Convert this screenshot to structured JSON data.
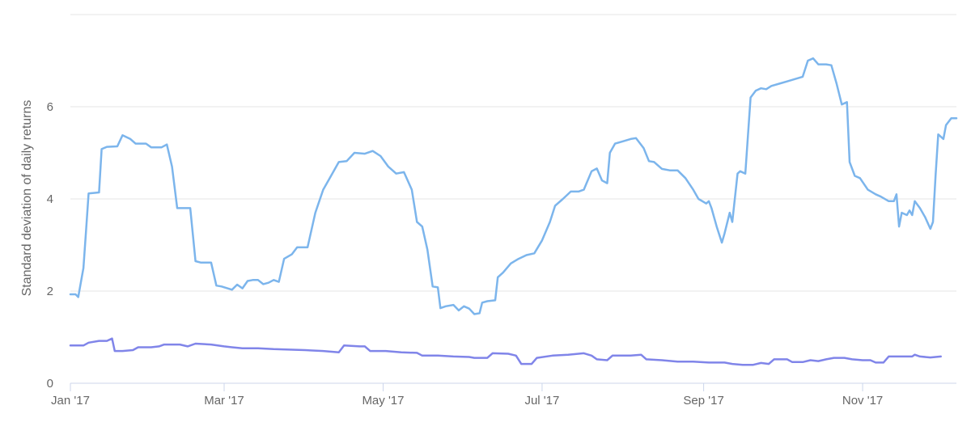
{
  "chart_data": {
    "type": "line",
    "title": "",
    "xlabel": "",
    "ylabel": "Standard deviation of daily returns",
    "x_range": [
      "2017-01-01",
      "2017-12-07"
    ],
    "ylim": [
      0,
      8
    ],
    "y_ticks": [
      0,
      2,
      4,
      6
    ],
    "x_ticks": [
      {
        "date": "2017-01-01",
        "label": "Jan '17"
      },
      {
        "date": "2017-03-01",
        "label": "Mar '17"
      },
      {
        "date": "2017-05-01",
        "label": "May '17"
      },
      {
        "date": "2017-07-01",
        "label": "Jul '17"
      },
      {
        "date": "2017-09-01",
        "label": "Sep '17"
      },
      {
        "date": "2017-11-01",
        "label": "Nov '17"
      }
    ],
    "grid": {
      "horizontal": true,
      "vertical": false
    },
    "series": [
      {
        "color": "#7cb5ec",
        "points": [
          [
            "2017-01-01",
            1.93
          ],
          [
            "2017-01-03",
            1.93
          ],
          [
            "2017-01-04",
            1.87
          ],
          [
            "2017-01-06",
            2.5
          ],
          [
            "2017-01-07",
            3.3
          ],
          [
            "2017-01-08",
            4.12
          ],
          [
            "2017-01-12",
            4.14
          ],
          [
            "2017-01-13",
            5.08
          ],
          [
            "2017-01-15",
            5.13
          ],
          [
            "2017-01-19",
            5.14
          ],
          [
            "2017-01-21",
            5.38
          ],
          [
            "2017-01-24",
            5.3
          ],
          [
            "2017-01-26",
            5.2
          ],
          [
            "2017-01-30",
            5.2
          ],
          [
            "2017-02-01",
            5.12
          ],
          [
            "2017-02-05",
            5.12
          ],
          [
            "2017-02-07",
            5.18
          ],
          [
            "2017-02-09",
            4.7
          ],
          [
            "2017-02-11",
            3.8
          ],
          [
            "2017-02-16",
            3.8
          ],
          [
            "2017-02-18",
            2.65
          ],
          [
            "2017-02-20",
            2.62
          ],
          [
            "2017-02-24",
            2.62
          ],
          [
            "2017-02-26",
            2.12
          ],
          [
            "2017-02-28",
            2.1
          ],
          [
            "2017-03-04",
            2.03
          ],
          [
            "2017-03-06",
            2.14
          ],
          [
            "2017-03-08",
            2.06
          ],
          [
            "2017-03-10",
            2.22
          ],
          [
            "2017-03-12",
            2.24
          ],
          [
            "2017-03-14",
            2.24
          ],
          [
            "2017-03-16",
            2.15
          ],
          [
            "2017-03-18",
            2.18
          ],
          [
            "2017-03-20",
            2.24
          ],
          [
            "2017-03-22",
            2.2
          ],
          [
            "2017-03-24",
            2.7
          ],
          [
            "2017-03-27",
            2.8
          ],
          [
            "2017-03-29",
            2.95
          ],
          [
            "2017-04-02",
            2.95
          ],
          [
            "2017-04-05",
            3.7
          ],
          [
            "2017-04-08",
            4.2
          ],
          [
            "2017-04-11",
            4.5
          ],
          [
            "2017-04-14",
            4.8
          ],
          [
            "2017-04-17",
            4.82
          ],
          [
            "2017-04-20",
            5.0
          ],
          [
            "2017-04-24",
            4.98
          ],
          [
            "2017-04-27",
            5.04
          ],
          [
            "2017-04-30",
            4.93
          ],
          [
            "2017-05-03",
            4.7
          ],
          [
            "2017-05-06",
            4.55
          ],
          [
            "2017-05-09",
            4.58
          ],
          [
            "2017-05-12",
            4.2
          ],
          [
            "2017-05-14",
            3.5
          ],
          [
            "2017-05-16",
            3.4
          ],
          [
            "2017-05-18",
            2.9
          ],
          [
            "2017-05-20",
            2.1
          ],
          [
            "2017-05-22",
            2.08
          ],
          [
            "2017-05-23",
            1.63
          ],
          [
            "2017-05-25",
            1.67
          ],
          [
            "2017-05-28",
            1.7
          ],
          [
            "2017-05-30",
            1.58
          ],
          [
            "2017-06-01",
            1.67
          ],
          [
            "2017-06-03",
            1.62
          ],
          [
            "2017-06-05",
            1.5
          ],
          [
            "2017-06-07",
            1.52
          ],
          [
            "2017-06-08",
            1.75
          ],
          [
            "2017-06-10",
            1.78
          ],
          [
            "2017-06-13",
            1.8
          ],
          [
            "2017-06-14",
            2.3
          ],
          [
            "2017-06-16",
            2.4
          ],
          [
            "2017-06-19",
            2.6
          ],
          [
            "2017-06-22",
            2.7
          ],
          [
            "2017-06-25",
            2.78
          ],
          [
            "2017-06-28",
            2.82
          ],
          [
            "2017-07-01",
            3.1
          ],
          [
            "2017-07-04",
            3.5
          ],
          [
            "2017-07-06",
            3.85
          ],
          [
            "2017-07-09",
            4.0
          ],
          [
            "2017-07-12",
            4.16
          ],
          [
            "2017-07-15",
            4.16
          ],
          [
            "2017-07-17",
            4.2
          ],
          [
            "2017-07-20",
            4.6
          ],
          [
            "2017-07-22",
            4.66
          ],
          [
            "2017-07-24",
            4.4
          ],
          [
            "2017-07-26",
            4.34
          ],
          [
            "2017-07-27",
            5.0
          ],
          [
            "2017-07-29",
            5.2
          ],
          [
            "2017-08-01",
            5.25
          ],
          [
            "2017-08-04",
            5.3
          ],
          [
            "2017-08-06",
            5.32
          ],
          [
            "2017-08-09",
            5.1
          ],
          [
            "2017-08-11",
            4.82
          ],
          [
            "2017-08-13",
            4.8
          ],
          [
            "2017-08-16",
            4.65
          ],
          [
            "2017-08-19",
            4.62
          ],
          [
            "2017-08-22",
            4.62
          ],
          [
            "2017-08-25",
            4.45
          ],
          [
            "2017-08-28",
            4.2
          ],
          [
            "2017-08-30",
            4.0
          ],
          [
            "2017-09-02",
            3.9
          ],
          [
            "2017-09-03",
            3.95
          ],
          [
            "2017-09-04",
            3.8
          ],
          [
            "2017-09-06",
            3.4
          ],
          [
            "2017-09-08",
            3.05
          ],
          [
            "2017-09-09",
            3.25
          ],
          [
            "2017-09-11",
            3.7
          ],
          [
            "2017-09-12",
            3.5
          ],
          [
            "2017-09-14",
            4.55
          ],
          [
            "2017-09-15",
            4.6
          ],
          [
            "2017-09-17",
            4.55
          ],
          [
            "2017-09-19",
            6.2
          ],
          [
            "2017-09-21",
            6.35
          ],
          [
            "2017-09-23",
            6.4
          ],
          [
            "2017-09-25",
            6.38
          ],
          [
            "2017-09-27",
            6.45
          ],
          [
            "2017-09-30",
            6.5
          ],
          [
            "2017-10-03",
            6.55
          ],
          [
            "2017-10-06",
            6.6
          ],
          [
            "2017-10-09",
            6.65
          ],
          [
            "2017-10-11",
            7.0
          ],
          [
            "2017-10-13",
            7.05
          ],
          [
            "2017-10-15",
            6.92
          ],
          [
            "2017-10-18",
            6.92
          ],
          [
            "2017-10-20",
            6.9
          ],
          [
            "2017-10-22",
            6.5
          ],
          [
            "2017-10-24",
            6.05
          ],
          [
            "2017-10-26",
            6.1
          ],
          [
            "2017-10-27",
            4.8
          ],
          [
            "2017-10-29",
            4.5
          ],
          [
            "2017-10-31",
            4.45
          ],
          [
            "2017-11-03",
            4.2
          ],
          [
            "2017-11-06",
            4.1
          ],
          [
            "2017-11-08",
            4.05
          ],
          [
            "2017-11-11",
            3.95
          ],
          [
            "2017-11-13",
            3.95
          ],
          [
            "2017-11-14",
            4.1
          ],
          [
            "2017-11-15",
            3.4
          ],
          [
            "2017-11-16",
            3.7
          ],
          [
            "2017-11-18",
            3.65
          ],
          [
            "2017-11-19",
            3.75
          ],
          [
            "2017-11-20",
            3.65
          ],
          [
            "2017-11-21",
            3.95
          ],
          [
            "2017-11-23",
            3.8
          ],
          [
            "2017-11-25",
            3.6
          ],
          [
            "2017-11-27",
            3.35
          ],
          [
            "2017-11-28",
            3.5
          ],
          [
            "2017-11-29",
            4.5
          ],
          [
            "2017-11-30",
            5.4
          ],
          [
            "2017-12-02",
            5.3
          ],
          [
            "2017-12-03",
            5.6
          ],
          [
            "2017-12-05",
            5.75
          ],
          [
            "2017-12-07",
            5.75
          ]
        ]
      },
      {
        "color": "#8085e9",
        "points": [
          [
            "2017-01-01",
            0.82
          ],
          [
            "2017-01-06",
            0.82
          ],
          [
            "2017-01-08",
            0.88
          ],
          [
            "2017-01-12",
            0.92
          ],
          [
            "2017-01-15",
            0.92
          ],
          [
            "2017-01-17",
            0.97
          ],
          [
            "2017-01-18",
            0.7
          ],
          [
            "2017-01-21",
            0.7
          ],
          [
            "2017-01-25",
            0.72
          ],
          [
            "2017-01-27",
            0.78
          ],
          [
            "2017-02-01",
            0.78
          ],
          [
            "2017-02-04",
            0.8
          ],
          [
            "2017-02-06",
            0.84
          ],
          [
            "2017-02-12",
            0.84
          ],
          [
            "2017-02-15",
            0.8
          ],
          [
            "2017-02-18",
            0.86
          ],
          [
            "2017-02-24",
            0.84
          ],
          [
            "2017-03-01",
            0.8
          ],
          [
            "2017-03-04",
            0.78
          ],
          [
            "2017-03-08",
            0.76
          ],
          [
            "2017-03-14",
            0.76
          ],
          [
            "2017-03-20",
            0.74
          ],
          [
            "2017-03-26",
            0.73
          ],
          [
            "2017-04-01",
            0.72
          ],
          [
            "2017-04-08",
            0.7
          ],
          [
            "2017-04-14",
            0.67
          ],
          [
            "2017-04-16",
            0.82
          ],
          [
            "2017-04-22",
            0.8
          ],
          [
            "2017-04-24",
            0.8
          ],
          [
            "2017-04-26",
            0.7
          ],
          [
            "2017-05-02",
            0.7
          ],
          [
            "2017-05-08",
            0.67
          ],
          [
            "2017-05-14",
            0.66
          ],
          [
            "2017-05-16",
            0.6
          ],
          [
            "2017-05-22",
            0.6
          ],
          [
            "2017-05-28",
            0.58
          ],
          [
            "2017-06-03",
            0.57
          ],
          [
            "2017-06-05",
            0.55
          ],
          [
            "2017-06-10",
            0.55
          ],
          [
            "2017-06-12",
            0.65
          ],
          [
            "2017-06-18",
            0.64
          ],
          [
            "2017-06-21",
            0.6
          ],
          [
            "2017-06-23",
            0.42
          ],
          [
            "2017-06-27",
            0.42
          ],
          [
            "2017-06-29",
            0.55
          ],
          [
            "2017-07-05",
            0.6
          ],
          [
            "2017-07-11",
            0.62
          ],
          [
            "2017-07-17",
            0.65
          ],
          [
            "2017-07-20",
            0.6
          ],
          [
            "2017-07-22",
            0.52
          ],
          [
            "2017-07-26",
            0.5
          ],
          [
            "2017-07-28",
            0.6
          ],
          [
            "2017-08-04",
            0.6
          ],
          [
            "2017-08-08",
            0.62
          ],
          [
            "2017-08-10",
            0.52
          ],
          [
            "2017-08-16",
            0.5
          ],
          [
            "2017-08-22",
            0.47
          ],
          [
            "2017-08-28",
            0.47
          ],
          [
            "2017-09-03",
            0.45
          ],
          [
            "2017-09-09",
            0.45
          ],
          [
            "2017-09-12",
            0.42
          ],
          [
            "2017-09-16",
            0.4
          ],
          [
            "2017-09-20",
            0.4
          ],
          [
            "2017-09-23",
            0.44
          ],
          [
            "2017-09-26",
            0.42
          ],
          [
            "2017-09-28",
            0.52
          ],
          [
            "2017-10-03",
            0.52
          ],
          [
            "2017-10-05",
            0.46
          ],
          [
            "2017-10-09",
            0.46
          ],
          [
            "2017-10-12",
            0.5
          ],
          [
            "2017-10-15",
            0.48
          ],
          [
            "2017-10-18",
            0.52
          ],
          [
            "2017-10-21",
            0.55
          ],
          [
            "2017-10-25",
            0.55
          ],
          [
            "2017-10-28",
            0.52
          ],
          [
            "2017-11-01",
            0.5
          ],
          [
            "2017-11-04",
            0.5
          ],
          [
            "2017-11-06",
            0.45
          ],
          [
            "2017-11-09",
            0.45
          ],
          [
            "2017-11-11",
            0.58
          ],
          [
            "2017-11-16",
            0.58
          ],
          [
            "2017-11-20",
            0.58
          ],
          [
            "2017-11-21",
            0.62
          ],
          [
            "2017-11-23",
            0.58
          ],
          [
            "2017-11-27",
            0.56
          ],
          [
            "2017-12-01",
            0.58
          ]
        ]
      }
    ]
  }
}
